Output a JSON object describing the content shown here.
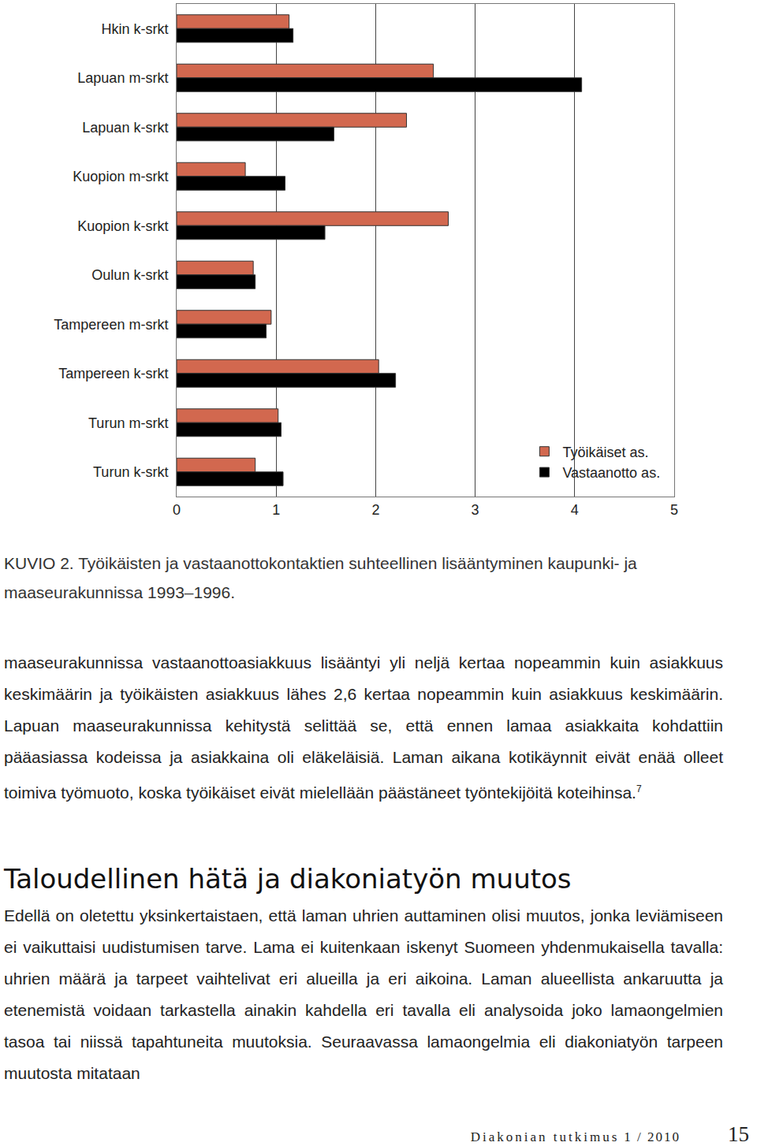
{
  "chart_data": {
    "type": "bar",
    "orientation": "horizontal",
    "categories": [
      "Hkin k-srkt",
      "Lapuan m-srkt",
      "Lapuan k-srkt",
      "Kuopion m-srkt",
      "Kuopion k-srkt",
      "Oulun k-srkt",
      "Tampereen m-srkt",
      "Tampereen k-srkt",
      "Turun m-srkt",
      "Turun k-srkt"
    ],
    "series": [
      {
        "name": "Työikäiset as.",
        "color": "#d2684f",
        "values": [
          1.13,
          2.58,
          2.31,
          0.69,
          2.73,
          0.77,
          0.95,
          2.03,
          1.02,
          0.79
        ]
      },
      {
        "name": "Vastaanotto as.",
        "color": "#000000",
        "values": [
          1.17,
          4.07,
          1.58,
          1.09,
          1.49,
          0.79,
          0.9,
          2.2,
          1.05,
          1.07
        ]
      }
    ],
    "xlim": [
      0,
      5
    ],
    "xticks": [
      0,
      1,
      2,
      3,
      4,
      5
    ],
    "grid": true,
    "legend": "bottom right"
  },
  "caption": "KUVIO 2. Työikäisten ja vastaanottokontaktien suhteellinen lisääntyminen kaupunki- ja maaseurakunnissa 1993–1996.",
  "body1": {
    "text": "maaseurakunnissa vastaanottoasiakkuus lisääntyi yli neljä kertaa nopeammin kuin asiakkuus keskimäärin ja työikäisten asiakkuus lähes 2,6 kertaa nopeammin kuin asiakkuus keskimäärin. Lapuan maaseurakunnissa kehitystä selittää se, että ennen lamaa asiakkaita kohdattiin pääasiassa kodeissa ja asiakkaina oli eläkeläisiä. Laman aikana kotikäynnit eivät enää olleet toimiva työmuoto, koska työikäiset eivät mielellään päästäneet työntekijöitä koteihinsa.",
    "footnote_mark": "7"
  },
  "heading": "Taloudellinen hätä ja diakoniatyön muutos",
  "body2": "Edellä on oletettu yksinkertaistaen, että laman uhrien auttaminen olisi muutos, jonka leviämiseen ei vaikuttaisi uudistumisen tarve. Lama ei kuitenkaan iskenyt Suomeen yhdenmukaisella tavalla: uhrien määrä ja tarpeet vaihtelivat eri alueilla ja eri aikoina. Laman alueellista ankaruutta ja etenemistä voidaan tarkastella ainakin kahdella eri tavalla eli analysoida joko lamaongelmien tasoa tai niissä tapahtuneita muutoksia. Seuraavassa lamaongelmia eli diakoniatyön tarpeen muutosta mitataan",
  "footer": {
    "journal": "Diakonian tutkimus",
    "issue": "1 / 2010",
    "page": "15"
  }
}
